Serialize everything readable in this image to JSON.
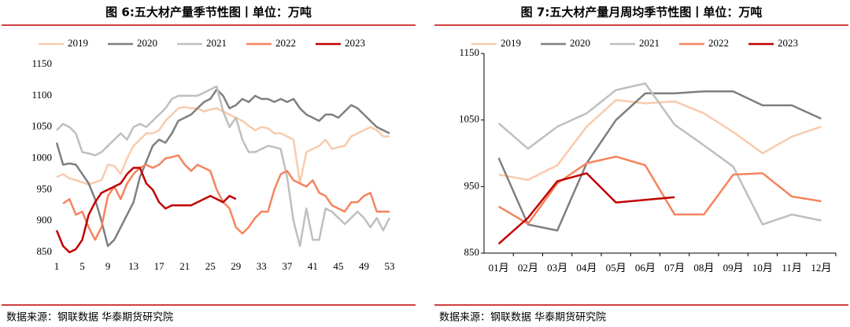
{
  "chart_data": [
    {
      "type": "line",
      "title": "图 6:五大材产量季节性图丨单位：万吨",
      "source": "数据来源：钢联数据 华泰期货研究院",
      "x": [
        1,
        2,
        3,
        4,
        5,
        6,
        7,
        8,
        9,
        10,
        11,
        12,
        13,
        14,
        15,
        16,
        17,
        18,
        19,
        20,
        21,
        22,
        23,
        24,
        25,
        26,
        27,
        28,
        29,
        30,
        31,
        32,
        33,
        34,
        35,
        36,
        37,
        38,
        39,
        40,
        41,
        42,
        43,
        44,
        45,
        46,
        47,
        48,
        49,
        50,
        51,
        52,
        53
      ],
      "xlim": [
        1,
        53
      ],
      "xticks": [
        1,
        5,
        9,
        13,
        17,
        21,
        25,
        29,
        33,
        37,
        41,
        45,
        49,
        53
      ],
      "ylim": [
        850,
        1150
      ],
      "yticks": [
        850,
        900,
        950,
        1000,
        1050,
        1100,
        1150
      ],
      "series": [
        {
          "name": "2019",
          "color": "#f8cbad",
          "values": [
            970,
            975,
            968,
            965,
            962,
            958,
            962,
            965,
            990,
            988,
            975,
            1000,
            1020,
            1030,
            1040,
            1040,
            1045,
            1060,
            1070,
            1080,
            1082,
            1080,
            1080,
            1075,
            1078,
            1080,
            1075,
            1070,
            1065,
            1060,
            1052,
            1045,
            1050,
            1048,
            1040,
            1040,
            1035,
            1030,
            960,
            1010,
            1015,
            1020,
            1030,
            1015,
            1018,
            1020,
            1035,
            1040,
            1045,
            1050,
            1045,
            1035,
            1035
          ]
        },
        {
          "name": "2020",
          "color": "#7f7f7f",
          "values": [
            1025,
            990,
            992,
            990,
            975,
            960,
            935,
            900,
            860,
            870,
            890,
            910,
            930,
            970,
            995,
            1020,
            1030,
            1025,
            1040,
            1060,
            1065,
            1070,
            1080,
            1090,
            1095,
            1110,
            1100,
            1080,
            1085,
            1095,
            1090,
            1100,
            1095,
            1095,
            1090,
            1095,
            1090,
            1095,
            1080,
            1070,
            1065,
            1060,
            1070,
            1070,
            1065,
            1075,
            1085,
            1080,
            1070,
            1060,
            1050,
            1045,
            1040
          ]
        },
        {
          "name": "2021",
          "color": "#bfbfbf",
          "values": [
            1045,
            1055,
            1050,
            1040,
            1010,
            1008,
            1005,
            1010,
            1020,
            1030,
            1040,
            1030,
            1050,
            1055,
            1050,
            1060,
            1070,
            1080,
            1095,
            1100,
            1100,
            1100,
            1100,
            1105,
            1110,
            1115,
            1075,
            1050,
            1065,
            1030,
            1010,
            1010,
            1015,
            1020,
            1018,
            1015,
            970,
            900,
            860,
            920,
            870,
            870,
            920,
            915,
            905,
            895,
            905,
            915,
            905,
            890,
            905,
            885,
            905
          ]
        },
        {
          "name": "2022",
          "color": "#f4845f",
          "values": [
            null,
            928,
            935,
            910,
            915,
            890,
            870,
            890,
            940,
            955,
            935,
            960,
            975,
            985,
            990,
            985,
            990,
            1000,
            1002,
            1005,
            990,
            980,
            990,
            985,
            980,
            950,
            930,
            920,
            890,
            880,
            890,
            905,
            915,
            915,
            950,
            975,
            980,
            965,
            960,
            955,
            965,
            945,
            940,
            925,
            920,
            915,
            930,
            930,
            940,
            945,
            915,
            915,
            915
          ]
        },
        {
          "name": "2023",
          "color": "#c00000",
          "values": [
            885,
            860,
            850,
            855,
            870,
            910,
            930,
            945,
            950,
            955,
            960,
            975,
            985,
            985,
            960,
            950,
            930,
            920,
            925,
            925,
            925,
            925,
            930,
            935,
            940,
            935,
            930,
            940,
            935,
            null,
            null,
            null,
            null,
            null,
            null,
            null,
            null,
            null,
            null,
            null,
            null,
            null,
            null,
            null,
            null,
            null,
            null,
            null,
            null,
            null,
            null,
            null,
            null
          ]
        }
      ]
    },
    {
      "type": "line",
      "title": "图 7:五大材产量月周均季节性图丨单位：万吨",
      "source": "数据来源：钢联数据 华泰期货研究院",
      "categories": [
        "01月",
        "02月",
        "03月",
        "04月",
        "05月",
        "06月",
        "07月",
        "08月",
        "09月",
        "10月",
        "11月",
        "12月"
      ],
      "ylim": [
        850,
        1150
      ],
      "yticks": [
        850,
        950,
        1050,
        1150
      ],
      "series": [
        {
          "name": "2019",
          "color": "#f8cbad",
          "values": [
            968,
            960,
            982,
            1040,
            1080,
            1075,
            1078,
            1060,
            1032,
            1000,
            1025,
            1040
          ]
        },
        {
          "name": "2020",
          "color": "#7f7f7f",
          "values": [
            993,
            893,
            884,
            985,
            1050,
            1090,
            1090,
            1093,
            1093,
            1072,
            1072,
            1052
          ]
        },
        {
          "name": "2021",
          "color": "#bfbfbf",
          "values": [
            1045,
            1007,
            1040,
            1060,
            1095,
            1105,
            1043,
            1012,
            980,
            893,
            908,
            899
          ]
        },
        {
          "name": "2022",
          "color": "#f4845f",
          "values": [
            920,
            894,
            955,
            985,
            995,
            982,
            908,
            908,
            968,
            970,
            935,
            928
          ]
        },
        {
          "name": "2023",
          "color": "#c00000",
          "values": [
            864,
            903,
            958,
            970,
            926,
            930,
            934,
            null,
            null,
            null,
            null,
            null
          ]
        }
      ]
    }
  ]
}
